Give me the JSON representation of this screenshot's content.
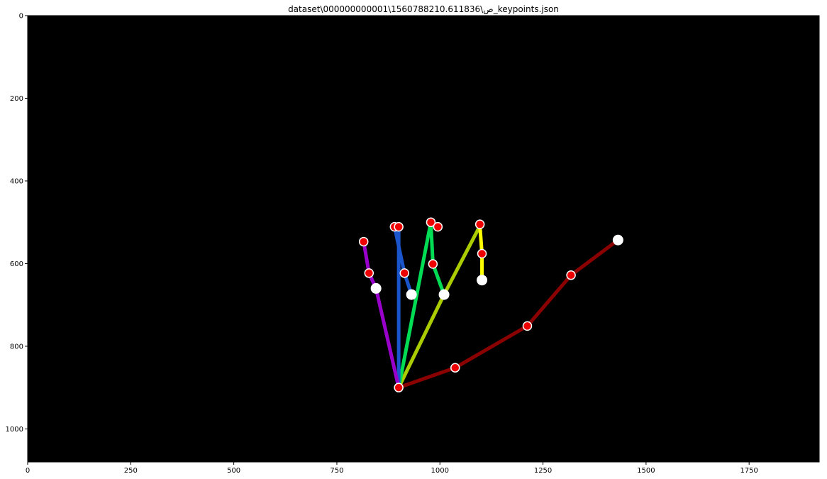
{
  "chart_data": {
    "type": "scatter",
    "title": "dataset\\ص\\1560788210.611836\\000000000001_keypoints.json",
    "xlabel": "",
    "ylabel": "",
    "xlim": [
      0,
      1920
    ],
    "ylim": [
      1080,
      0
    ],
    "y_inverted": true,
    "background": "#000000",
    "grid": false,
    "x_ticks": [
      0,
      250,
      500,
      750,
      1000,
      1250,
      1500,
      1750
    ],
    "y_ticks": [
      0,
      200,
      400,
      600,
      800,
      1000
    ],
    "wrist": [
      900,
      900
    ],
    "fingers": [
      {
        "color": "#8b0000",
        "points": [
          [
            900,
            900
          ],
          [
            1037,
            852
          ],
          [
            1212,
            751
          ],
          [
            1318,
            628
          ],
          [
            1432,
            543
          ]
        ]
      },
      {
        "color": "#aacc00",
        "points": [
          [
            900,
            900
          ],
          [
            1010,
            675
          ],
          [
            1097,
            509
          ]
        ]
      },
      {
        "color": "#ffff00",
        "points": [
          [
            1097,
            509
          ],
          [
            1102,
            576
          ],
          [
            1102,
            640
          ]
        ]
      },
      {
        "color": "#00dd55",
        "points": [
          [
            900,
            900
          ],
          [
            978,
            500
          ],
          [
            983,
            601
          ],
          [
            1010,
            675
          ]
        ]
      },
      {
        "color": "#1a55cc",
        "points": [
          [
            900,
            900
          ],
          [
            900,
            511
          ],
          [
            890,
            511
          ],
          [
            914,
            623
          ],
          [
            931,
            675
          ]
        ]
      },
      {
        "color": "#9900cc",
        "points": [
          [
            900,
            900
          ],
          [
            845,
            660
          ],
          [
            828,
            623
          ],
          [
            815,
            547
          ]
        ]
      }
    ],
    "red_keypoints": [
      [
        900,
        900
      ],
      [
        1037,
        852
      ],
      [
        1212,
        751
      ],
      [
        1318,
        628
      ],
      [
        1097,
        505
      ],
      [
        1102,
        576
      ],
      [
        978,
        500
      ],
      [
        995,
        511
      ],
      [
        983,
        601
      ],
      [
        890,
        511
      ],
      [
        900,
        511
      ],
      [
        914,
        623
      ],
      [
        815,
        547
      ],
      [
        828,
        623
      ]
    ],
    "white_keypoints": [
      [
        1432,
        543
      ],
      [
        1102,
        640
      ],
      [
        1010,
        675
      ],
      [
        931,
        675
      ],
      [
        845,
        660
      ]
    ]
  }
}
